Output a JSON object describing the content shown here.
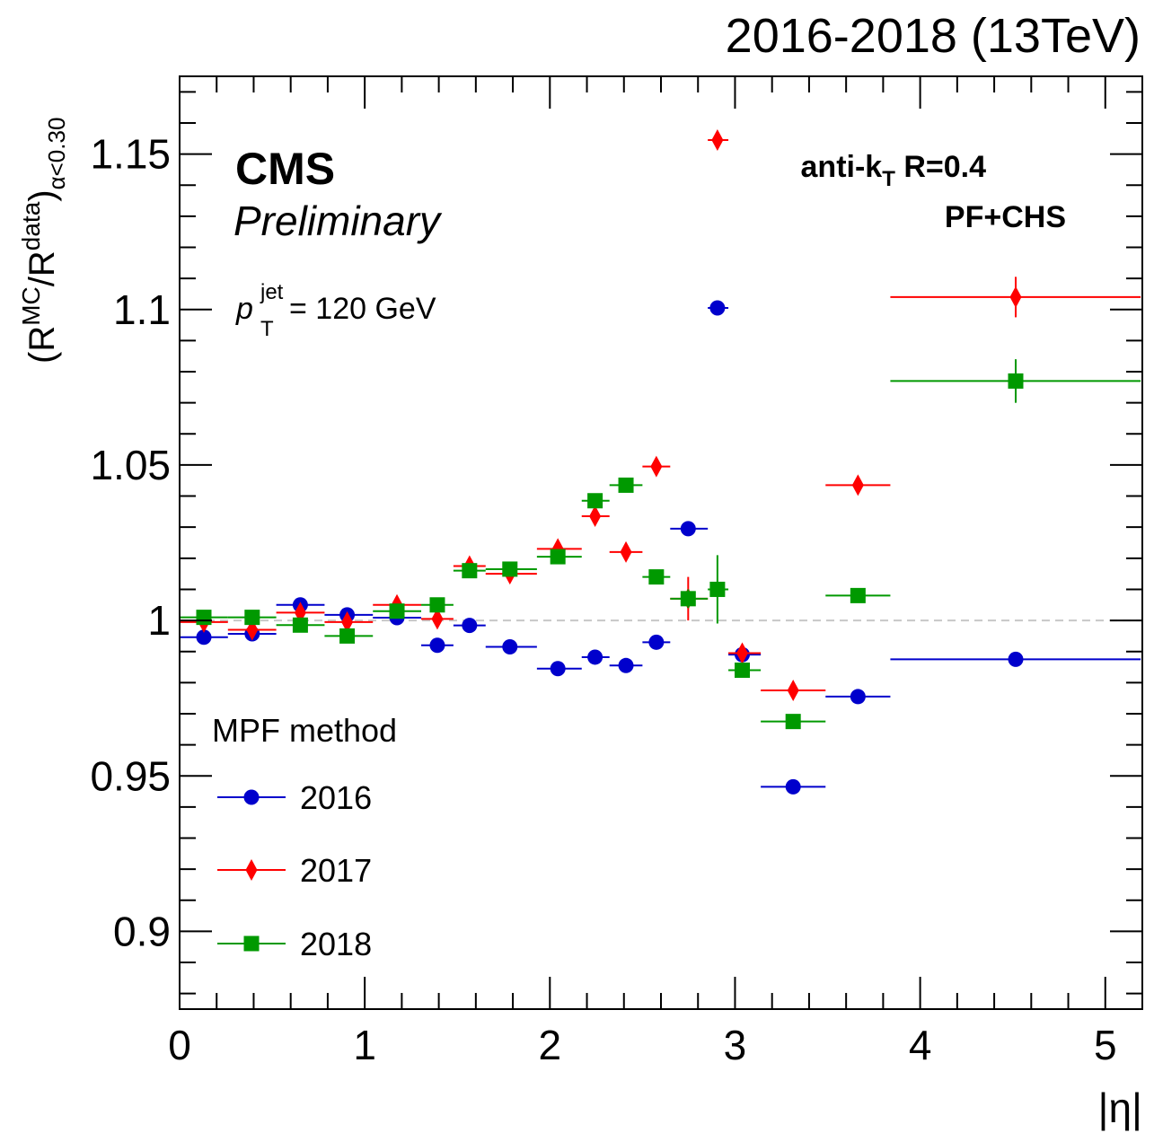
{
  "chart_data": {
    "type": "scatter",
    "title": "2016-2018 (13TeV)",
    "experiment": "CMS",
    "status": "Preliminary",
    "info_lines": [
      "anti-k_T R=0.4",
      "PF+CHS"
    ],
    "pt_label": {
      "symbol": "p",
      "sup": "jet",
      "sub": "T",
      "text": " = 120 GeV"
    },
    "xlabel": "|η|",
    "ylabel": {
      "pre": "(R",
      "sup1": "MC",
      "mid": "/R",
      "sup2": "data",
      "post": ")",
      "sub": "α<0.30"
    },
    "xlim": [
      0,
      5.2
    ],
    "ylim": [
      0.875,
      1.175
    ],
    "x_ticks": [
      "0",
      "1",
      "2",
      "3",
      "4",
      "5"
    ],
    "y_ticks": [
      "0.9",
      "0.95",
      "1",
      "1.05",
      "1.1",
      "1.15"
    ],
    "reference_line": 1.0,
    "legend": {
      "title": "MPF method",
      "position": "bottom-left"
    },
    "series": [
      {
        "name": "2016",
        "marker": "circle",
        "color": "#0000cc",
        "points": [
          {
            "x": 0.131,
            "xlo": 0.0,
            "xhi": 0.261,
            "y": 0.9946,
            "err": 0.0006
          },
          {
            "x": 0.392,
            "xlo": 0.261,
            "xhi": 0.522,
            "y": 0.9957,
            "err": 0.0006
          },
          {
            "x": 0.652,
            "xlo": 0.522,
            "xhi": 0.783,
            "y": 1.005,
            "err": 0.0006
          },
          {
            "x": 0.905,
            "xlo": 0.783,
            "xhi": 1.044,
            "y": 1.0018,
            "err": 0.0006
          },
          {
            "x": 1.174,
            "xlo": 1.044,
            "xhi": 1.305,
            "y": 1.0009,
            "err": 0.0006
          },
          {
            "x": 1.392,
            "xlo": 1.305,
            "xhi": 1.479,
            "y": 0.992,
            "err": 0.0006
          },
          {
            "x": 1.566,
            "xlo": 1.479,
            "xhi": 1.653,
            "y": 0.9984,
            "err": 0.0015
          },
          {
            "x": 1.784,
            "xlo": 1.653,
            "xhi": 1.93,
            "y": 0.9915,
            "err": 0.0007
          },
          {
            "x": 2.043,
            "xlo": 1.93,
            "xhi": 2.172,
            "y": 0.9845,
            "err": 0.0008
          },
          {
            "x": 2.244,
            "xlo": 2.172,
            "xhi": 2.322,
            "y": 0.9882,
            "err": 0.0018
          },
          {
            "x": 2.411,
            "xlo": 2.322,
            "xhi": 2.5,
            "y": 0.9855,
            "err": 0.0012
          },
          {
            "x": 2.575,
            "xlo": 2.5,
            "xhi": 2.65,
            "y": 0.993,
            "err": 0.0008
          },
          {
            "x": 2.747,
            "xlo": 2.65,
            "xhi": 2.853,
            "y": 1.0295,
            "err": 0.002
          },
          {
            "x": 2.905,
            "xlo": 2.853,
            "xhi": 2.964,
            "y": 1.1005,
            "err": 0.002
          },
          {
            "x": 3.039,
            "xlo": 2.964,
            "xhi": 3.139,
            "y": 0.989,
            "err": 0.001
          },
          {
            "x": 3.314,
            "xlo": 3.139,
            "xhi": 3.489,
            "y": 0.9465,
            "err": 0.0008
          },
          {
            "x": 3.664,
            "xlo": 3.489,
            "xhi": 3.839,
            "y": 0.9755,
            "err": 0.0008
          },
          {
            "x": 4.516,
            "xlo": 3.839,
            "xhi": 5.191,
            "y": 0.9875,
            "err": 0.0008
          }
        ]
      },
      {
        "name": "2017",
        "marker": "diamond",
        "color": "#ff0000",
        "points": [
          {
            "x": 0.131,
            "xlo": 0.0,
            "xhi": 0.261,
            "y": 0.9995,
            "err": 0.0006
          },
          {
            "x": 0.392,
            "xlo": 0.261,
            "xhi": 0.522,
            "y": 0.997,
            "err": 0.0006
          },
          {
            "x": 0.652,
            "xlo": 0.522,
            "xhi": 0.783,
            "y": 1.0025,
            "err": 0.0006
          },
          {
            "x": 0.905,
            "xlo": 0.783,
            "xhi": 1.044,
            "y": 0.9995,
            "err": 0.0006
          },
          {
            "x": 1.174,
            "xlo": 1.044,
            "xhi": 1.305,
            "y": 1.005,
            "err": 0.0006
          },
          {
            "x": 1.392,
            "xlo": 1.305,
            "xhi": 1.479,
            "y": 1.0005,
            "err": 0.0007
          },
          {
            "x": 1.566,
            "xlo": 1.479,
            "xhi": 1.653,
            "y": 1.0175,
            "err": 0.0008
          },
          {
            "x": 1.784,
            "xlo": 1.653,
            "xhi": 1.93,
            "y": 1.015,
            "err": 0.0008
          },
          {
            "x": 2.043,
            "xlo": 1.93,
            "xhi": 2.172,
            "y": 1.023,
            "err": 0.0008
          },
          {
            "x": 2.244,
            "xlo": 2.172,
            "xhi": 2.322,
            "y": 1.0335,
            "err": 0.001
          },
          {
            "x": 2.411,
            "xlo": 2.322,
            "xhi": 2.5,
            "y": 1.022,
            "err": 0.001
          },
          {
            "x": 2.575,
            "xlo": 2.5,
            "xhi": 2.65,
            "y": 1.0495,
            "err": 0.001
          },
          {
            "x": 2.747,
            "xlo": 2.65,
            "xhi": 2.853,
            "y": 1.007,
            "err": 0.007
          },
          {
            "x": 2.905,
            "xlo": 2.853,
            "xhi": 2.964,
            "y": 1.1545,
            "err": 0.0025
          },
          {
            "x": 3.039,
            "xlo": 2.964,
            "xhi": 3.139,
            "y": 0.9895,
            "err": 0.0008
          },
          {
            "x": 3.314,
            "xlo": 3.139,
            "xhi": 3.489,
            "y": 0.9775,
            "err": 0.0008
          },
          {
            "x": 3.664,
            "xlo": 3.489,
            "xhi": 3.839,
            "y": 1.0435,
            "err": 0.0008
          },
          {
            "x": 4.516,
            "xlo": 3.839,
            "xhi": 5.191,
            "y": 1.104,
            "err": 0.0065
          }
        ]
      },
      {
        "name": "2018",
        "marker": "square",
        "color": "#009900",
        "points": [
          {
            "x": 0.131,
            "xlo": 0.0,
            "xhi": 0.261,
            "y": 1.001,
            "err": 0.0006
          },
          {
            "x": 0.392,
            "xlo": 0.261,
            "xhi": 0.522,
            "y": 1.001,
            "err": 0.0006
          },
          {
            "x": 0.652,
            "xlo": 0.522,
            "xhi": 0.783,
            "y": 0.9985,
            "err": 0.0006
          },
          {
            "x": 0.905,
            "xlo": 0.783,
            "xhi": 1.044,
            "y": 0.995,
            "err": 0.0006
          },
          {
            "x": 1.174,
            "xlo": 1.044,
            "xhi": 1.305,
            "y": 1.003,
            "err": 0.0006
          },
          {
            "x": 1.392,
            "xlo": 1.305,
            "xhi": 1.479,
            "y": 1.005,
            "err": 0.0007
          },
          {
            "x": 1.566,
            "xlo": 1.479,
            "xhi": 1.653,
            "y": 1.016,
            "err": 0.0008
          },
          {
            "x": 1.784,
            "xlo": 1.653,
            "xhi": 1.93,
            "y": 1.0165,
            "err": 0.0008
          },
          {
            "x": 2.043,
            "xlo": 1.93,
            "xhi": 2.172,
            "y": 1.0205,
            "err": 0.0008
          },
          {
            "x": 2.244,
            "xlo": 2.172,
            "xhi": 2.322,
            "y": 1.0385,
            "err": 0.001
          },
          {
            "x": 2.411,
            "xlo": 2.322,
            "xhi": 2.5,
            "y": 1.0435,
            "err": 0.001
          },
          {
            "x": 2.575,
            "xlo": 2.5,
            "xhi": 2.65,
            "y": 1.014,
            "err": 0.001
          },
          {
            "x": 2.747,
            "xlo": 2.65,
            "xhi": 2.853,
            "y": 1.007,
            "err": 0.003
          },
          {
            "x": 2.905,
            "xlo": 2.853,
            "xhi": 2.964,
            "y": 1.01,
            "err": 0.011
          },
          {
            "x": 3.039,
            "xlo": 2.964,
            "xhi": 3.139,
            "y": 0.984,
            "err": 0.001
          },
          {
            "x": 3.314,
            "xlo": 3.139,
            "xhi": 3.489,
            "y": 0.9675,
            "err": 0.0008
          },
          {
            "x": 3.664,
            "xlo": 3.489,
            "xhi": 3.839,
            "y": 1.008,
            "err": 0.0008
          },
          {
            "x": 4.516,
            "xlo": 3.839,
            "xhi": 5.191,
            "y": 1.077,
            "err": 0.007
          }
        ]
      }
    ]
  }
}
